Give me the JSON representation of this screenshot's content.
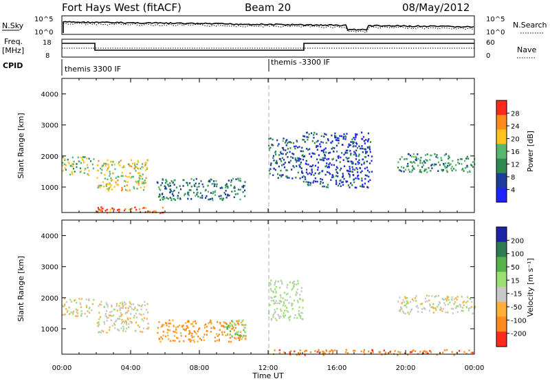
{
  "header": {
    "station": "Fort Hays West (fitACF)",
    "beam": "Beam 20",
    "date": "08/May/2012"
  },
  "nsky_panel": {
    "left_label": "N.Sky",
    "left_ticks": [
      "10^5",
      "10^0"
    ],
    "right_label": "N.Search",
    "right_ticks": [
      "10^5",
      "10^0"
    ]
  },
  "freq_panel": {
    "left_label_line1": "Freq.",
    "left_label_line2": "[MHz]",
    "left_ticks": [
      "18",
      "8"
    ],
    "right_label": "Nave",
    "right_ticks": [
      "60",
      "0"
    ]
  },
  "cpid_panel": {
    "label": "CPID",
    "segments": [
      "themis 3300 IF",
      "themis -3300 IF"
    ]
  },
  "colors": {
    "power_scale": [
      "#1e22ff",
      "#1d3c9c",
      "#2e8a4e",
      "#56b86f",
      "#ffc21e",
      "#ff8a1e",
      "#ff2a1e"
    ],
    "velocity_scale": [
      "#ff2a1e",
      "#ff8a1e",
      "#ffb03a",
      "#c8c8c8",
      "#9be070",
      "#55b24a",
      "#2e7b53",
      "#1e22a8"
    ]
  },
  "chart_data": [
    {
      "type": "heatmap",
      "name": "power",
      "xlabel": "",
      "ylabel": "Slant Range [km]",
      "yticks": [
        "4000",
        "3000",
        "2000",
        "1000"
      ],
      "xlim_hours": [
        0,
        24
      ],
      "ylim_km": [
        180,
        4500
      ],
      "colorbar_label": "Power [dB]",
      "colorbar_ticks": [
        "28",
        "24",
        "20",
        "16",
        "12",
        "8",
        "4"
      ],
      "colorbar_range": [
        0,
        30
      ],
      "approx_bands": [
        {
          "t_start": "00:00",
          "t_end": "01:50",
          "range_km": [
            1400,
            2000
          ],
          "power_db": 16
        },
        {
          "t_start": "02:00",
          "t_end": "05:00",
          "range_km": [
            900,
            1900
          ],
          "power_db": 18
        },
        {
          "t_start": "05:30",
          "t_end": "10:40",
          "range_km": [
            600,
            1300
          ],
          "power_db": 10
        },
        {
          "t_start": "02:00",
          "t_end": "06:00",
          "range_km": [
            180,
            400
          ],
          "power_db": 26
        },
        {
          "t_start": "12:00",
          "t_end": "14:00",
          "range_km": [
            1300,
            2600
          ],
          "power_db": 8
        },
        {
          "t_start": "14:00",
          "t_end": "18:00",
          "range_km": [
            1000,
            2800
          ],
          "power_db": 6
        },
        {
          "t_start": "19:30",
          "t_end": "24:00",
          "range_km": [
            1500,
            2100
          ],
          "power_db": 12
        }
      ]
    },
    {
      "type": "heatmap",
      "name": "velocity",
      "xlabel": "Time UT",
      "ylabel": "Slant Range [km]",
      "yticks": [
        "4000",
        "3000",
        "2000",
        "1000"
      ],
      "xticks": [
        "00:00",
        "04:00",
        "08:00",
        "12:00",
        "16:00",
        "20:00",
        "00:00"
      ],
      "xlim_hours": [
        0,
        24
      ],
      "ylim_km": [
        180,
        4500
      ],
      "colorbar_label": "Velocity [m s⁻¹]",
      "colorbar_ticks": [
        "200",
        "100",
        "50",
        "15",
        "-15",
        "-50",
        "-100",
        "-200"
      ],
      "approx_bands": [
        {
          "t_start": "00:00",
          "t_end": "01:50",
          "range_km": [
            1400,
            2000
          ],
          "velocity": 0
        },
        {
          "t_start": "02:00",
          "t_end": "05:00",
          "range_km": [
            900,
            1900
          ],
          "velocity": 0
        },
        {
          "t_start": "05:30",
          "t_end": "10:40",
          "range_km": [
            600,
            1300
          ],
          "velocity": -60
        },
        {
          "t_start": "09:30",
          "t_end": "10:40",
          "range_km": [
            700,
            1300
          ],
          "velocity": 40
        },
        {
          "t_start": "12:00",
          "t_end": "24:00",
          "range_km": [
            180,
            350
          ],
          "velocity": -80
        },
        {
          "t_start": "12:00",
          "t_end": "14:00",
          "range_km": [
            1300,
            2600
          ],
          "velocity": 20
        },
        {
          "t_start": "19:30",
          "t_end": "24:00",
          "range_km": [
            1500,
            2100
          ],
          "velocity": 0
        }
      ]
    }
  ]
}
